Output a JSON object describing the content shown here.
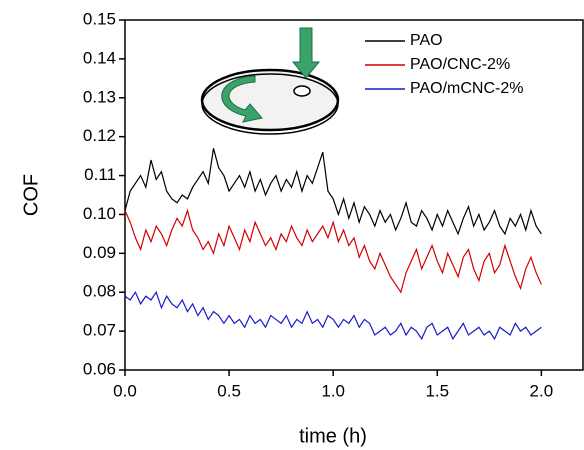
{
  "chart_data": {
    "type": "line",
    "x_label": "time (h)",
    "y_label": "COF",
    "xlim": [
      0,
      2.2
    ],
    "ylim": [
      0.06,
      0.15
    ],
    "xticks": [
      {
        "value": 0,
        "label": "0.0"
      },
      {
        "value": 0.5,
        "label": "0.5"
      },
      {
        "value": 1,
        "label": "1.0"
      },
      {
        "value": 1.5,
        "label": "1.5"
      },
      {
        "value": 2,
        "label": "2.0"
      }
    ],
    "yticks": [
      {
        "value": 0.06,
        "label": "0.06"
      },
      {
        "value": 0.07,
        "label": "0.07"
      },
      {
        "value": 0.08,
        "label": "0.08"
      },
      {
        "value": 0.09,
        "label": "0.09"
      },
      {
        "value": 0.1,
        "label": "0.10"
      },
      {
        "value": 0.11,
        "label": "0.11"
      },
      {
        "value": 0.12,
        "label": "0.12"
      },
      {
        "value": 0.13,
        "label": "0.13"
      },
      {
        "value": 0.14,
        "label": "0.14"
      },
      {
        "value": 0.15,
        "label": "0.15"
      }
    ],
    "legend": "upper right",
    "x": [
      0,
      0.025,
      0.05,
      0.075,
      0.1,
      0.125,
      0.15,
      0.175,
      0.2,
      0.225,
      0.25,
      0.275,
      0.3,
      0.325,
      0.35,
      0.375,
      0.4,
      0.425,
      0.45,
      0.475,
      0.5,
      0.525,
      0.55,
      0.575,
      0.6,
      0.625,
      0.65,
      0.675,
      0.7,
      0.725,
      0.75,
      0.775,
      0.8,
      0.825,
      0.85,
      0.875,
      0.9,
      0.925,
      0.95,
      0.975,
      1,
      1.025,
      1.05,
      1.075,
      1.1,
      1.125,
      1.15,
      1.175,
      1.2,
      1.225,
      1.25,
      1.275,
      1.3,
      1.325,
      1.35,
      1.375,
      1.4,
      1.425,
      1.45,
      1.475,
      1.5,
      1.525,
      1.55,
      1.575,
      1.6,
      1.625,
      1.65,
      1.675,
      1.7,
      1.725,
      1.75,
      1.775,
      1.8,
      1.825,
      1.85,
      1.875,
      1.9,
      1.925,
      1.95,
      1.975,
      2
    ],
    "series": [
      {
        "name": "PAO",
        "color": "#000000",
        "values": [
          0.101,
          0.106,
          0.108,
          0.11,
          0.107,
          0.114,
          0.109,
          0.111,
          0.106,
          0.104,
          0.103,
          0.105,
          0.104,
          0.107,
          0.109,
          0.111,
          0.108,
          0.117,
          0.112,
          0.11,
          0.106,
          0.108,
          0.11,
          0.107,
          0.111,
          0.106,
          0.109,
          0.105,
          0.108,
          0.11,
          0.106,
          0.109,
          0.107,
          0.111,
          0.106,
          0.11,
          0.108,
          0.112,
          0.116,
          0.106,
          0.104,
          0.1,
          0.104,
          0.099,
          0.103,
          0.098,
          0.102,
          0.1,
          0.097,
          0.101,
          0.098,
          0.1,
          0.096,
          0.099,
          0.103,
          0.098,
          0.097,
          0.101,
          0.099,
          0.096,
          0.1,
          0.097,
          0.101,
          0.098,
          0.095,
          0.099,
          0.102,
          0.097,
          0.1,
          0.096,
          0.098,
          0.101,
          0.097,
          0.095,
          0.099,
          0.097,
          0.1,
          0.096,
          0.101,
          0.097,
          0.095
        ]
      },
      {
        "name": "PAO/CNC-2%",
        "color": "#d40000",
        "values": [
          0.101,
          0.098,
          0.094,
          0.091,
          0.096,
          0.093,
          0.097,
          0.095,
          0.092,
          0.096,
          0.099,
          0.097,
          0.101,
          0.096,
          0.094,
          0.091,
          0.093,
          0.09,
          0.095,
          0.092,
          0.097,
          0.094,
          0.091,
          0.096,
          0.093,
          0.098,
          0.095,
          0.092,
          0.094,
          0.091,
          0.095,
          0.093,
          0.097,
          0.094,
          0.092,
          0.096,
          0.093,
          0.095,
          0.097,
          0.094,
          0.098,
          0.093,
          0.096,
          0.092,
          0.094,
          0.089,
          0.092,
          0.088,
          0.086,
          0.09,
          0.087,
          0.084,
          0.082,
          0.08,
          0.085,
          0.088,
          0.091,
          0.086,
          0.089,
          0.092,
          0.088,
          0.085,
          0.09,
          0.087,
          0.084,
          0.089,
          0.091,
          0.086,
          0.083,
          0.088,
          0.09,
          0.085,
          0.087,
          0.092,
          0.088,
          0.084,
          0.081,
          0.086,
          0.089,
          0.085,
          0.082
        ]
      },
      {
        "name": "PAO/mCNC-2%",
        "color": "#1a1ac8",
        "values": [
          0.079,
          0.078,
          0.08,
          0.077,
          0.079,
          0.078,
          0.08,
          0.076,
          0.079,
          0.077,
          0.076,
          0.078,
          0.075,
          0.077,
          0.074,
          0.076,
          0.073,
          0.075,
          0.074,
          0.072,
          0.074,
          0.072,
          0.073,
          0.071,
          0.074,
          0.072,
          0.073,
          0.071,
          0.074,
          0.073,
          0.072,
          0.074,
          0.071,
          0.073,
          0.072,
          0.075,
          0.072,
          0.073,
          0.071,
          0.074,
          0.073,
          0.071,
          0.073,
          0.072,
          0.074,
          0.071,
          0.073,
          0.072,
          0.069,
          0.07,
          0.071,
          0.069,
          0.07,
          0.072,
          0.069,
          0.071,
          0.07,
          0.068,
          0.071,
          0.072,
          0.069,
          0.07,
          0.071,
          0.068,
          0.07,
          0.072,
          0.069,
          0.07,
          0.071,
          0.069,
          0.07,
          0.068,
          0.071,
          0.07,
          0.069,
          0.072,
          0.07,
          0.071,
          0.069,
          0.07,
          0.071
        ]
      }
    ]
  }
}
